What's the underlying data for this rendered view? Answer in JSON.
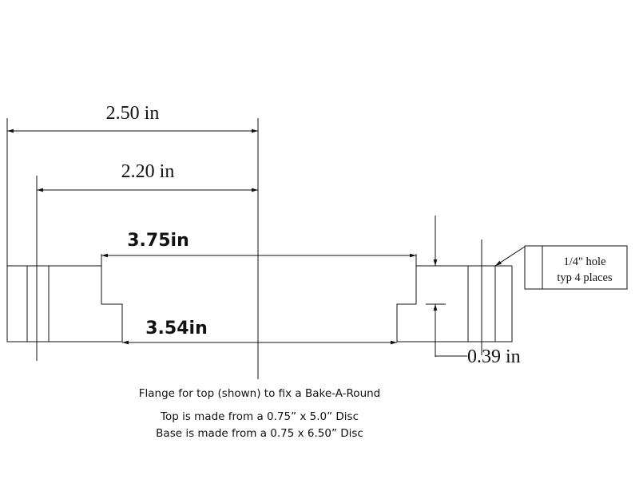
{
  "dimensions": {
    "overall_radius": "2.50 in",
    "hole_center_radius": "2.20 in",
    "top_recess_width": "3.75in",
    "bottom_recess_width": "3.54in",
    "step_depth": "0.39 in"
  },
  "hole_note": {
    "line1": "1/4\" hole",
    "line2": "typ 4 places"
  },
  "captions": {
    "line1": "Flange for top (shown) to fix a Bake-A-Round",
    "line2": "Top is made from a 0.75” x 5.0” Disc",
    "line3": "Base is made from a 0.75 x 6.50” Disc"
  }
}
